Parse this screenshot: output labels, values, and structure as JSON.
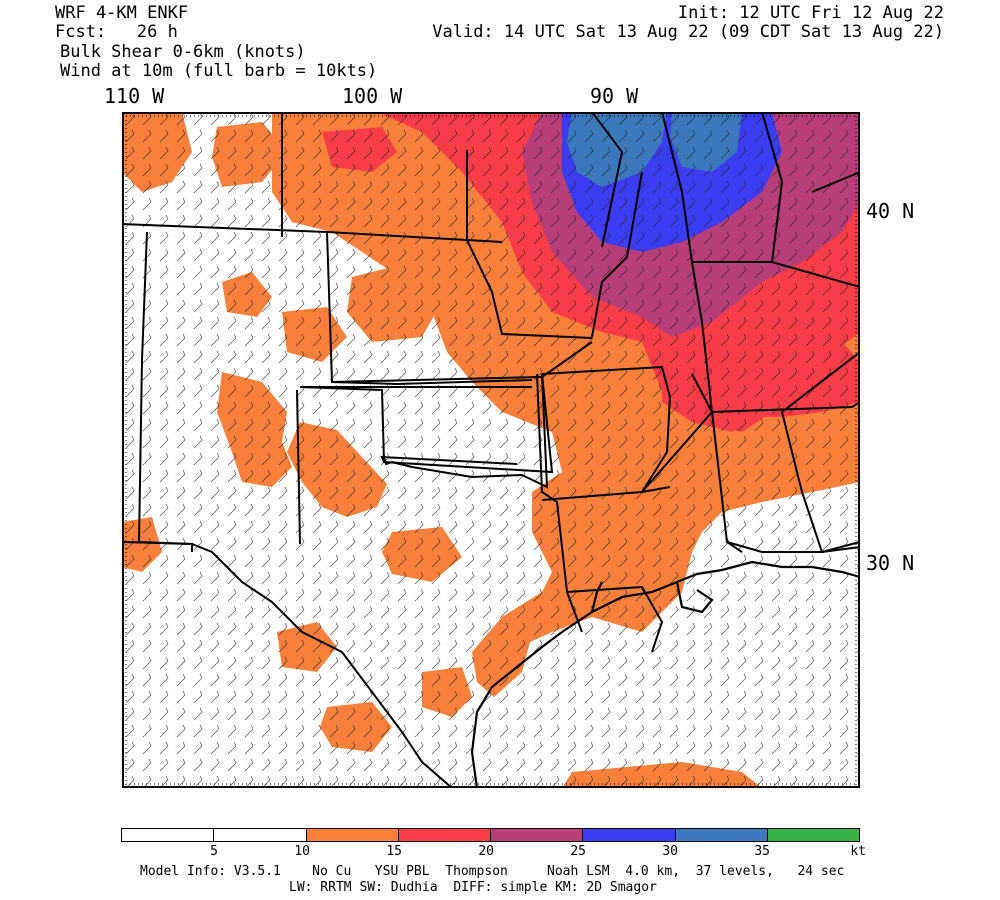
{
  "header": {
    "model": "WRF 4-KM ENKF",
    "fcst": "Fcst:   26 h",
    "field": "Bulk Shear 0-6km (knots)",
    "wind": "Wind at 10m (full barb = 10kts)",
    "init": "Init: 12 UTC Fri 12 Aug 22",
    "valid": "Valid: 14 UTC Sat 13 Aug 22 (09 CDT Sat 13 Aug 22)"
  },
  "axes": {
    "lon_labels": [
      "110 W",
      "100 W",
      "90 W"
    ],
    "lat_labels": [
      "40 N",
      "30 N"
    ]
  },
  "legend": {
    "colors": [
      "#ffffff",
      "#ffffff",
      "#f9803a",
      "#f83c48",
      "#b83e7a",
      "#3c3cf2",
      "#3b78bc",
      "#38b24a"
    ],
    "ticks": [
      "5",
      "10",
      "15",
      "20",
      "25",
      "30",
      "35",
      "kt"
    ]
  },
  "footer": {
    "line1": "Model Info: V3.5.1    No Cu   YSU PBL  Thompson     Noah LSM  4.0 km,  37 levels,   24 sec",
    "line2": "LW: RRTM SW: Dudhia  DIFF: simple KM: 2D Smagor"
  }
}
